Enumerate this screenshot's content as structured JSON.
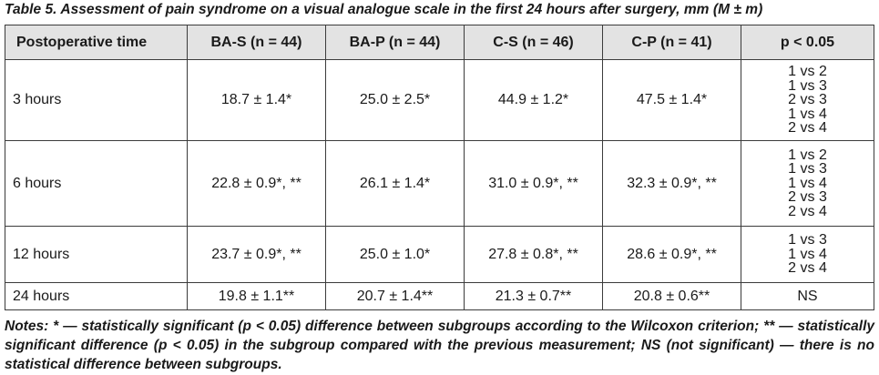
{
  "caption": "Table 5. Assessment of pain syndrome on a visual analogue scale in the first 24 hours after surgery, mm (M ± m)",
  "table": {
    "headers": [
      "Postoperative time",
      "BA-S (n = 44)",
      "BA-P (n = 44)",
      "C-S (n = 46)",
      "C-P (n = 41)",
      "p < 0.05"
    ],
    "rows": [
      {
        "time": "3 hours",
        "values": [
          "18.7 ± 1.4*",
          "25.0 ± 2.5*",
          "44.9 ± 1.2*",
          "47.5 ± 1.4*"
        ],
        "p": [
          "1 vs 2",
          "1 vs 3",
          "2 vs 3",
          "1 vs 4",
          "2 vs 4"
        ]
      },
      {
        "time": "6 hours",
        "values": [
          "22.8 ± 0.9*, **",
          "26.1 ± 1.4*",
          "31.0 ± 0.9*, **",
          "32.3 ± 0.9*, **"
        ],
        "p": [
          "1 vs 2",
          "1 vs 3",
          "1 vs 4",
          "2 vs 3",
          "2 vs 4"
        ]
      },
      {
        "time": "12 hours",
        "values": [
          "23.7 ± 0.9*, **",
          "25.0 ± 1.0*",
          "27.8 ± 0.8*, **",
          "28.6 ± 0.9*, **"
        ],
        "p": [
          "1 vs 3",
          "1 vs 4",
          "2 vs 4"
        ]
      },
      {
        "time": "24 hours",
        "values": [
          "19.8 ± 1.1**",
          "20.7 ± 1.4**",
          "21.3 ± 0.7**",
          "20.8 ± 0.6**"
        ],
        "p": [
          "NS"
        ]
      }
    ]
  },
  "notes": "Notes: * — statistically significant (p < 0.05) difference between subgroups according to the Wilcoxon criterion; ** — statistically significant difference (p < 0.05) in the subgroup compared with the previous measurement; NS (not significant) — there is no statistical difference between subgroups."
}
